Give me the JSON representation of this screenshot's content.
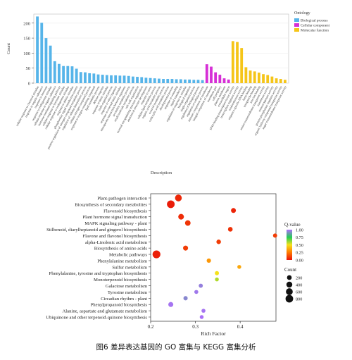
{
  "caption": "图6 差异表达基因的 GO 富集与 KEGG 富集分析",
  "chart_data": [
    {
      "type": "bar",
      "xlabel": "Description",
      "ylabel": "Count",
      "ylim": [
        0,
        230
      ],
      "yticks": [
        0,
        50,
        100,
        150,
        200
      ],
      "legend": {
        "title": "Ontology",
        "placement": "top-right",
        "entries": [
          {
            "name": "Biological process",
            "color": "#56b4e9"
          },
          {
            "name": "Cellular component",
            "color": "#d62fd6"
          },
          {
            "name": "Molecular function",
            "color": "#f5c518"
          }
        ]
      },
      "series": [
        {
          "name": "Biological process",
          "color": "#56b4e9",
          "categories": [
            "cellular response to chemical stimulus",
            "response to organic substance",
            "response to hormone",
            "response to endogenous stimulus",
            "cellular response to organic substance",
            "hormone-mediated signaling pathway",
            "cellular response to hormone stimulus",
            "cellular response to endogenous stimulus",
            "response to abiotic stimulus",
            "phosphorelay signal transduction system",
            "positive regulation of nitrogen compound metabolic process",
            "regulation of cellular biosynthetic process",
            "cellular nitrogen compound process",
            "response to oxygen-containing compound",
            "lipid metabolic process",
            "defense response",
            "response to biotic stimulus",
            "multi-organism process",
            "response to other organism",
            "response to external biotic stimulus",
            "interspecies interaction between organisms",
            "secondary metabolic process",
            "small molecule metabolic process",
            "cell wall organization",
            "external encapsulating structure organization",
            "anatomical structure development",
            "response to stress",
            "cellular lipid metabolic process",
            "organic acid metabolic process",
            "oxoacid metabolic process",
            "carboxylic acid metabolic process",
            "developmental process",
            "response to wounding",
            "signal transduction",
            "regulation of response to stimulus",
            "biological regulation",
            "single-organism process",
            "regulation of biological process",
            "regulation of cellular process"
          ],
          "values": [
            222,
            201,
            150,
            125,
            73,
            64,
            57,
            57,
            56,
            48,
            37,
            36,
            33,
            32,
            29,
            28,
            27,
            26,
            26,
            25,
            25,
            24,
            22,
            21,
            20,
            18,
            17,
            16,
            15,
            14,
            14,
            14,
            13,
            13,
            12,
            12,
            11,
            11,
            10
          ]
        },
        {
          "name": "Cellular component",
          "color": "#d62fd6",
          "categories": [
            "intrinsic component of membrane",
            "integral component of membrane",
            "membrane part",
            "cell periphery",
            "plasma membrane",
            "extracellular region"
          ],
          "values": [
            63,
            55,
            36,
            28,
            16,
            12
          ]
        },
        {
          "name": "Molecular function",
          "color": "#f5c518",
          "categories": [
            "DNA-binding transcription factor activity",
            "transcription regulator activity",
            "oxidoreductase activity",
            "sequence-specific DNA binding",
            "heme binding",
            "tetrapyrrole binding",
            "iron ion binding",
            "amino transmembrane transporter activity",
            "transferase activity",
            "monooxygenase activity",
            "protein phosphatase regulator activity",
            "organic hydroxy compound transporter activity",
            "sugar transmembrane transporter activity"
          ],
          "values": [
            140,
            137,
            117,
            53,
            42,
            39,
            35,
            30,
            27,
            22,
            16,
            14,
            11
          ]
        }
      ]
    },
    {
      "type": "scatter",
      "xlabel": "Rich Factor",
      "xlim": [
        0.2,
        0.48
      ],
      "xticks": [
        0.2,
        0.3,
        0.4
      ],
      "color_legend": {
        "title": "Q-value",
        "range": [
          0,
          1
        ],
        "ticks": [
          "1.00",
          "0.75",
          "0.50",
          "0.25",
          "0.00"
        ],
        "stops": [
          "#b06cff",
          "#22cc55",
          "#f5e11a",
          "#ff7a00",
          "#e8140a"
        ]
      },
      "size_legend": {
        "title": "Count",
        "values": [
          200,
          400,
          600,
          800
        ]
      },
      "pathways": [
        {
          "name": "Plant-pathogen interaction",
          "rich_factor": 0.262,
          "q_value": 0.05,
          "count": 590
        },
        {
          "name": "Biosynthesis of secondary metabolites",
          "rich_factor": 0.245,
          "q_value": 0.02,
          "count": 820
        },
        {
          "name": "Flavonoid biosynthesis",
          "rich_factor": 0.385,
          "q_value": 0.04,
          "count": 230
        },
        {
          "name": "Plant hormone signal transduction",
          "rich_factor": 0.268,
          "q_value": 0.06,
          "count": 360
        },
        {
          "name": "MAPK signaling pathway - plant",
          "rich_factor": 0.283,
          "q_value": 0.08,
          "count": 330
        },
        {
          "name": "Stilbenoid, diarylheptanoid and gingerol biosynthesis",
          "rich_factor": 0.378,
          "q_value": 0.07,
          "count": 190
        },
        {
          "name": "Flavone and flavonol biosynthesis",
          "rich_factor": 0.478,
          "q_value": 0.1,
          "count": 130
        },
        {
          "name": "alpha-Linolenic acid metabolism",
          "rich_factor": 0.352,
          "q_value": 0.1,
          "count": 180
        },
        {
          "name": "Biosynthesis of amino acids",
          "rich_factor": 0.278,
          "q_value": 0.1,
          "count": 240
        },
        {
          "name": "Metabolic pathways",
          "rich_factor": 0.213,
          "q_value": 0.03,
          "count": 880
        },
        {
          "name": "Phenylalanine metabolism",
          "rich_factor": 0.33,
          "q_value": 0.32,
          "count": 150
        },
        {
          "name": "Sulfur metabolism",
          "rich_factor": 0.398,
          "q_value": 0.36,
          "count": 100
        },
        {
          "name": "Phenylalanine, tyrosine and tryptophan biosynthesis",
          "rich_factor": 0.348,
          "q_value": 0.5,
          "count": 130
        },
        {
          "name": "Monoterpenoid biosynthesis",
          "rich_factor": 0.348,
          "q_value": 0.58,
          "count": 100
        },
        {
          "name": "Galactose metabolism",
          "rich_factor": 0.312,
          "q_value": 0.95,
          "count": 130
        },
        {
          "name": "Tyrosine metabolism",
          "rich_factor": 0.302,
          "q_value": 0.97,
          "count": 110
        },
        {
          "name": "Circadian rhythm - plant",
          "rich_factor": 0.278,
          "q_value": 0.93,
          "count": 140
        },
        {
          "name": "Phenylpropanoid biosynthesis",
          "rich_factor": 0.245,
          "q_value": 0.98,
          "count": 240
        },
        {
          "name": "Alanine, aspartate and glutamate metabolism",
          "rich_factor": 0.318,
          "q_value": 0.98,
          "count": 110
        },
        {
          "name": "Ubiquinone and other terpenoid-quinone biosynthesis",
          "rich_factor": 0.314,
          "q_value": 0.99,
          "count": 100
        }
      ]
    }
  ]
}
